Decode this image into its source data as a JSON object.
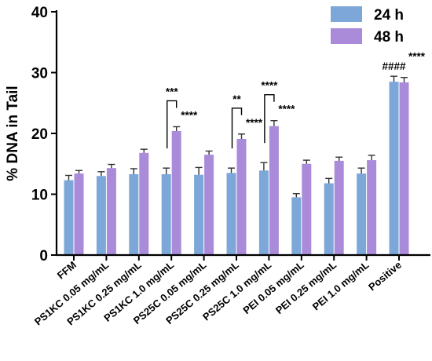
{
  "chart_data": {
    "type": "bar",
    "title": "",
    "xlabel": "",
    "ylabel": "% DNA in Tail",
    "ylim": [
      0,
      40
    ],
    "yticks": [
      0,
      10,
      20,
      30,
      40
    ],
    "grid": false,
    "legend_position": "top-right",
    "categories": [
      "FFM",
      "PS1KC 0.05 mg/mL",
      "PS1KC 0.25 mg/mL",
      "PS1KC 1.0 mg/mL",
      "PS25C 0.05 mg/mL",
      "PS25C 0.25 mg/mL",
      "PS25C 1.0 mg/mL",
      "PEI 0.05 mg/mL",
      "PEI 0.25 mg/mL",
      "PEI 1.0 mg/mL",
      "Positive"
    ],
    "series": [
      {
        "name": "24 h",
        "color": "#7da7d9",
        "values": [
          12.3,
          13.0,
          13.3,
          13.3,
          13.2,
          13.5,
          13.9,
          9.5,
          11.8,
          13.4,
          28.5
        ],
        "errors": [
          0.8,
          0.7,
          0.9,
          1.0,
          1.2,
          0.8,
          1.3,
          0.6,
          0.8,
          0.9,
          0.9
        ]
      },
      {
        "name": "48 h",
        "color": "#a98bd9",
        "values": [
          13.4,
          14.3,
          16.8,
          20.4,
          16.5,
          19.1,
          21.2,
          15.0,
          15.5,
          15.6,
          28.4
        ],
        "errors": [
          0.5,
          0.6,
          0.6,
          0.7,
          0.6,
          0.8,
          0.9,
          0.6,
          0.6,
          0.8,
          0.8
        ]
      }
    ],
    "annotations": [
      {
        "category_index": 3,
        "series": "48 h",
        "text": "****"
      },
      {
        "category_index": 3,
        "bracket": true,
        "text": "***"
      },
      {
        "category_index": 5,
        "series": "48 h",
        "text": "****"
      },
      {
        "category_index": 5,
        "bracket": true,
        "text": "**"
      },
      {
        "category_index": 6,
        "series": "48 h",
        "text": "****"
      },
      {
        "category_index": 6,
        "bracket": true,
        "text": "****"
      },
      {
        "category_index": 10,
        "series": "24 h",
        "text": "####"
      },
      {
        "category_index": 10,
        "series": "48 h",
        "text": "****"
      }
    ]
  }
}
